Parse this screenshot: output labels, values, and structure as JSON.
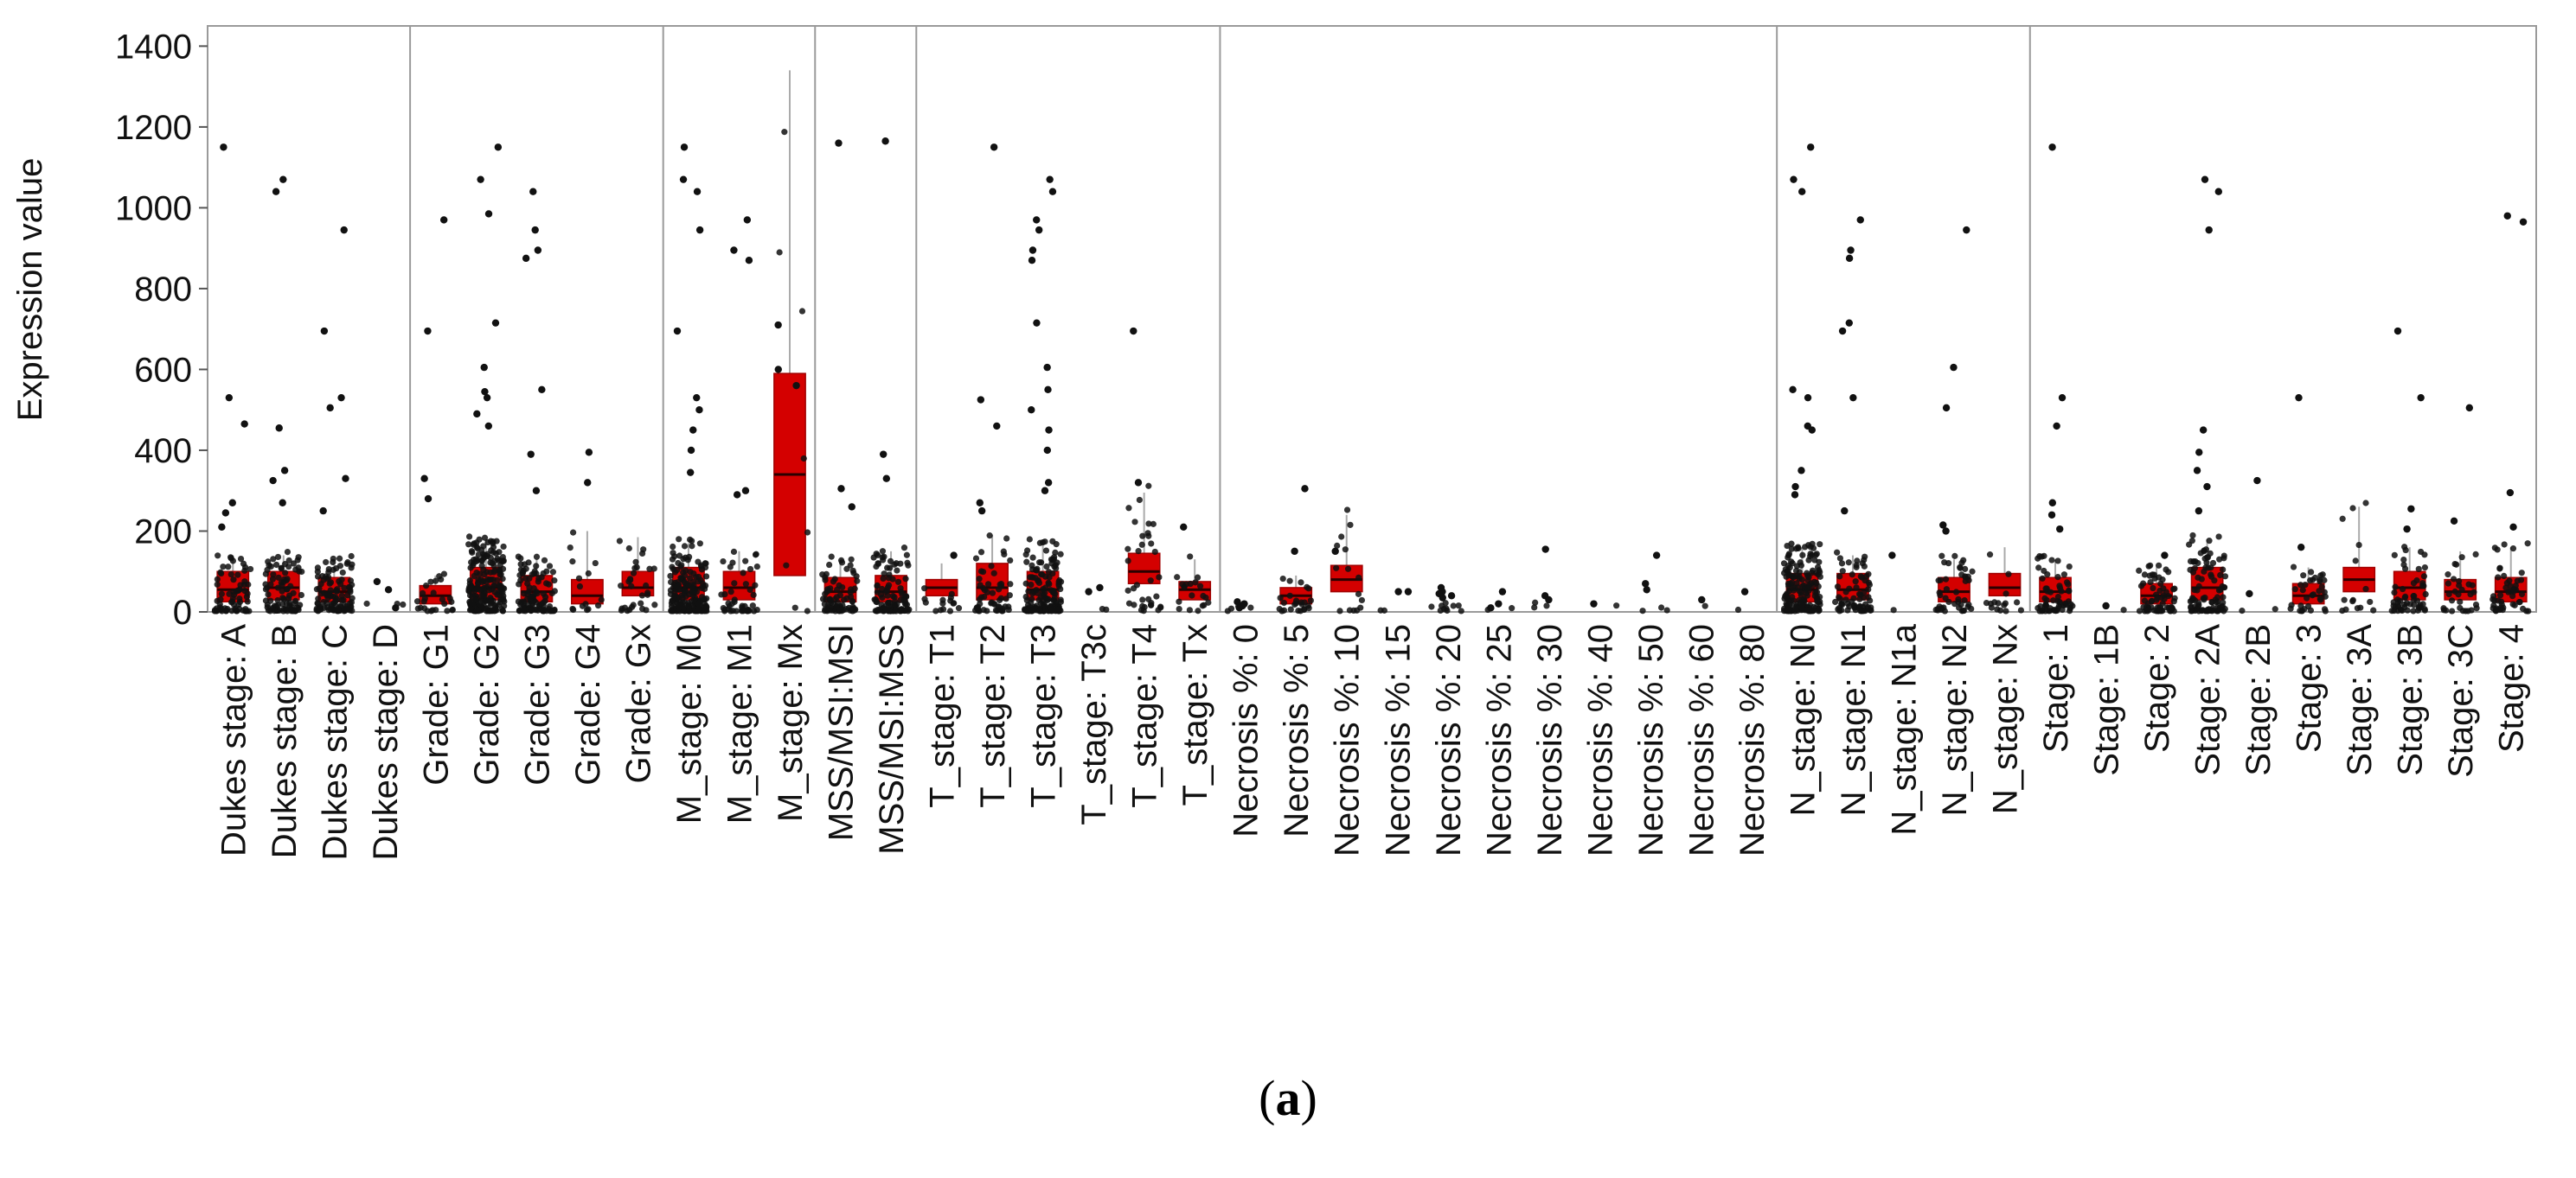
{
  "caption": {
    "open": "(",
    "letter": "a",
    "close": ")"
  },
  "chart_data": {
    "type": "box",
    "ylabel": "Expression value",
    "ylim": [
      0,
      1450
    ],
    "yticks": [
      0,
      200,
      400,
      600,
      800,
      1000,
      1200,
      1400
    ],
    "box_color": "#d40000",
    "point_color": "#111111",
    "groups": [
      {
        "categories": [
          {
            "label": "Dukes stage: A",
            "n": 70,
            "q1": 25,
            "median": 55,
            "q3": 100,
            "max": 140,
            "outliers": [
              1150,
              530,
              465,
              270,
              245,
              210
            ]
          },
          {
            "label": "Dukes stage: B",
            "n": 90,
            "q1": 30,
            "median": 60,
            "q3": 100,
            "max": 140,
            "outliers": [
              1070,
              1040,
              455,
              350,
              325,
              270
            ]
          },
          {
            "label": "Dukes stage: C",
            "n": 110,
            "q1": 25,
            "median": 50,
            "q3": 85,
            "max": 130,
            "outliers": [
              945,
              695,
              530,
              505,
              330,
              250
            ]
          },
          {
            "label": "Dukes stage: D",
            "n": 3,
            "q1": 0,
            "median": 0,
            "q3": 0,
            "max": 0,
            "outliers": [
              75,
              55,
              10
            ]
          }
        ]
      },
      {
        "categories": [
          {
            "label": "Grade: G1",
            "n": 25,
            "q1": 20,
            "median": 40,
            "q3": 65,
            "max": 90,
            "outliers": [
              970,
              695,
              330,
              280
            ]
          },
          {
            "label": "Grade: G2",
            "n": 200,
            "q1": 30,
            "median": 60,
            "q3": 110,
            "max": 180,
            "outliers": [
              1150,
              1070,
              985,
              715,
              605,
              545,
              530,
              490,
              460
            ]
          },
          {
            "label": "Grade: G3",
            "n": 110,
            "q1": 25,
            "median": 50,
            "q3": 90,
            "max": 130,
            "outliers": [
              1040,
              945,
              895,
              875,
              550,
              390,
              300
            ]
          },
          {
            "label": "Grade: G4",
            "n": 15,
            "q1": 20,
            "median": 40,
            "q3": 80,
            "max": 200,
            "outliers": [
              395,
              320
            ]
          },
          {
            "label": "Grade: Gx",
            "n": 30,
            "q1": 40,
            "median": 60,
            "q3": 100,
            "max": 185,
            "outliers": []
          }
        ]
      },
      {
        "categories": [
          {
            "label": "M_stage: M0",
            "n": 190,
            "q1": 30,
            "median": 60,
            "q3": 110,
            "max": 170,
            "outliers": [
              1150,
              1070,
              1040,
              945,
              695,
              530,
              500,
              450,
              400,
              345
            ]
          },
          {
            "label": "M_stage: M1",
            "n": 45,
            "q1": 30,
            "median": 60,
            "q3": 100,
            "max": 150,
            "outliers": [
              970,
              895,
              870,
              300,
              290
            ]
          },
          {
            "label": "M_stage: Mx",
            "n": 8,
            "q1": 90,
            "median": 340,
            "q3": 590,
            "max": 1340,
            "outliers": [
              710,
              600,
              560
            ]
          }
        ]
      },
      {
        "categories": [
          {
            "label": "MSS/MSI:MSI",
            "n": 80,
            "q1": 25,
            "median": 50,
            "q3": 85,
            "max": 130,
            "outliers": [
              1160,
              305,
              260
            ]
          },
          {
            "label": "MSS/MSI:MSS",
            "n": 110,
            "q1": 25,
            "median": 50,
            "q3": 90,
            "max": 150,
            "outliers": [
              1165,
              390,
              330
            ]
          }
        ]
      },
      {
        "categories": [
          {
            "label": "T_stage: T1",
            "n": 15,
            "q1": 40,
            "median": 60,
            "q3": 80,
            "max": 120,
            "outliers": [
              140
            ]
          },
          {
            "label": "T_stage: T2",
            "n": 55,
            "q1": 30,
            "median": 60,
            "q3": 120,
            "max": 190,
            "outliers": [
              1150,
              525,
              460,
              270,
              250
            ]
          },
          {
            "label": "T_stage: T3",
            "n": 160,
            "q1": 30,
            "median": 55,
            "q3": 100,
            "max": 170,
            "outliers": [
              1070,
              1040,
              970,
              945,
              895,
              870,
              715,
              605,
              550,
              500,
              450,
              400,
              320,
              300
            ]
          },
          {
            "label": "T_stage: T3c",
            "n": 2,
            "q1": 0,
            "median": 0,
            "q3": 0,
            "max": 0,
            "outliers": [
              60,
              50
            ]
          },
          {
            "label": "T_stage: T4",
            "n": 35,
            "q1": 70,
            "median": 100,
            "q3": 145,
            "max": 295,
            "outliers": [
              695,
              320
            ]
          },
          {
            "label": "T_stage: Tx",
            "n": 20,
            "q1": 30,
            "median": 55,
            "q3": 75,
            "max": 130,
            "outliers": [
              210
            ]
          }
        ]
      },
      {
        "categories": [
          {
            "label": "Necrosis %: 0",
            "n": 4,
            "q1": 0,
            "median": 0,
            "q3": 0,
            "max": 0,
            "outliers": [
              25,
              20,
              15,
              10
            ]
          },
          {
            "label": "Necrosis %: 5",
            "n": 25,
            "q1": 20,
            "median": 40,
            "q3": 60,
            "max": 90,
            "outliers": [
              305,
              150
            ]
          },
          {
            "label": "Necrosis %: 10",
            "n": 15,
            "q1": 50,
            "median": 80,
            "q3": 115,
            "max": 240,
            "outliers": [
              150
            ]
          },
          {
            "label": "Necrosis %: 15",
            "n": 2,
            "q1": 0,
            "median": 0,
            "q3": 0,
            "max": 0,
            "outliers": [
              50,
              50
            ]
          },
          {
            "label": "Necrosis %: 20",
            "n": 10,
            "q1": 0,
            "median": 0,
            "q3": 0,
            "max": 0,
            "outliers": [
              60,
              50,
              45,
              40,
              35
            ]
          },
          {
            "label": "Necrosis %: 25",
            "n": 3,
            "q1": 0,
            "median": 0,
            "q3": 0,
            "max": 0,
            "outliers": [
              50,
              20,
              10
            ]
          },
          {
            "label": "Necrosis %: 30",
            "n": 3,
            "q1": 0,
            "median": 0,
            "q3": 0,
            "max": 0,
            "outliers": [
              155,
              40,
              30
            ]
          },
          {
            "label": "Necrosis %: 40",
            "n": 1,
            "q1": 0,
            "median": 0,
            "q3": 0,
            "max": 0,
            "outliers": [
              20
            ]
          },
          {
            "label": "Necrosis %: 50",
            "n": 3,
            "q1": 0,
            "median": 0,
            "q3": 0,
            "max": 0,
            "outliers": [
              140,
              70,
              55
            ]
          },
          {
            "label": "Necrosis %: 60",
            "n": 1,
            "q1": 0,
            "median": 0,
            "q3": 0,
            "max": 0,
            "outliers": [
              30
            ]
          },
          {
            "label": "Necrosis %: 80",
            "n": 1,
            "q1": 0,
            "median": 0,
            "q3": 0,
            "max": 0,
            "outliers": [
              50
            ]
          }
        ]
      },
      {
        "categories": [
          {
            "label": "N_stage: N0",
            "n": 170,
            "q1": 25,
            "median": 55,
            "q3": 95,
            "max": 160,
            "outliers": [
              1150,
              1070,
              1040,
              550,
              530,
              460,
              450,
              350,
              310,
              290
            ]
          },
          {
            "label": "N_stage: N1",
            "n": 70,
            "q1": 30,
            "median": 55,
            "q3": 95,
            "max": 140,
            "outliers": [
              970,
              895,
              875,
              715,
              695,
              530,
              250
            ]
          },
          {
            "label": "N_stage: N1a",
            "n": 1,
            "q1": 0,
            "median": 0,
            "q3": 0,
            "max": 0,
            "outliers": [
              140
            ]
          },
          {
            "label": "N_stage: N2",
            "n": 45,
            "q1": 25,
            "median": 50,
            "q3": 85,
            "max": 130,
            "outliers": [
              945,
              605,
              505,
              215,
              200
            ]
          },
          {
            "label": "N_stage: Nx",
            "n": 15,
            "q1": 40,
            "median": 60,
            "q3": 95,
            "max": 160,
            "outliers": []
          }
        ]
      },
      {
        "categories": [
          {
            "label": "Stage: 1",
            "n": 60,
            "q1": 25,
            "median": 50,
            "q3": 85,
            "max": 130,
            "outliers": [
              1150,
              530,
              460,
              270,
              240,
              205
            ]
          },
          {
            "label": "Stage: 1B",
            "n": 1,
            "q1": 0,
            "median": 0,
            "q3": 0,
            "max": 0,
            "outliers": [
              15
            ]
          },
          {
            "label": "Stage: 2",
            "n": 70,
            "q1": 20,
            "median": 40,
            "q3": 70,
            "max": 110,
            "outliers": [
              140
            ]
          },
          {
            "label": "Stage: 2A",
            "n": 100,
            "q1": 30,
            "median": 60,
            "q3": 110,
            "max": 180,
            "outliers": [
              1070,
              1040,
              945,
              450,
              395,
              350,
              310,
              250
            ]
          },
          {
            "label": "Stage: 2B",
            "n": 2,
            "q1": 0,
            "median": 0,
            "q3": 0,
            "max": 0,
            "outliers": [
              325,
              45
            ]
          },
          {
            "label": "Stage: 3",
            "n": 35,
            "q1": 20,
            "median": 40,
            "q3": 70,
            "max": 110,
            "outliers": [
              530,
              160
            ]
          },
          {
            "label": "Stage: 3A",
            "n": 15,
            "q1": 50,
            "median": 80,
            "q3": 110,
            "max": 260,
            "outliers": []
          },
          {
            "label": "Stage: 3B",
            "n": 55,
            "q1": 30,
            "median": 60,
            "q3": 100,
            "max": 160,
            "outliers": [
              695,
              530,
              255,
              205
            ]
          },
          {
            "label": "Stage: 3C",
            "n": 30,
            "q1": 30,
            "median": 50,
            "q3": 80,
            "max": 150,
            "outliers": [
              505,
              225
            ]
          },
          {
            "label": "Stage: 4",
            "n": 50,
            "q1": 25,
            "median": 50,
            "q3": 85,
            "max": 160,
            "outliers": [
              980,
              965,
              295,
              210
            ]
          }
        ]
      }
    ]
  }
}
